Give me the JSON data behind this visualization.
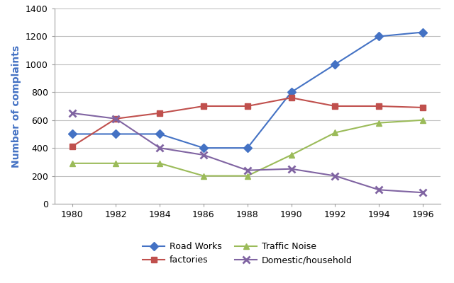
{
  "years": [
    1980,
    1982,
    1984,
    1986,
    1988,
    1990,
    1992,
    1994,
    1996
  ],
  "road_works": [
    500,
    500,
    500,
    400,
    400,
    800,
    1000,
    1200,
    1230
  ],
  "factories": [
    410,
    610,
    650,
    700,
    700,
    760,
    700,
    700,
    690
  ],
  "traffic_noise": [
    290,
    290,
    290,
    200,
    200,
    350,
    510,
    580,
    600
  ],
  "domestic_household": [
    650,
    610,
    400,
    350,
    240,
    250,
    200,
    100,
    80
  ],
  "colors": {
    "road_works": "#4472C4",
    "factories": "#C0504D",
    "traffic_noise": "#9BBB59",
    "domestic_household": "#8064A2"
  },
  "markers": {
    "road_works": "D",
    "factories": "s",
    "traffic_noise": "^",
    "domestic_household": "x"
  },
  "ylabel": "Number of complaints",
  "ylabel_color": "#4472C4",
  "ylim": [
    0,
    1400
  ],
  "yticks": [
    0,
    200,
    400,
    600,
    800,
    1000,
    1200,
    1400
  ],
  "legend_labels": [
    "Road Works",
    "factories",
    "Traffic Noise",
    "Domestic/household"
  ],
  "background_color": "#FFFFFF",
  "grid_color": "#C0C0C0",
  "figure_width": 6.4,
  "figure_height": 4.0,
  "dpi": 100
}
